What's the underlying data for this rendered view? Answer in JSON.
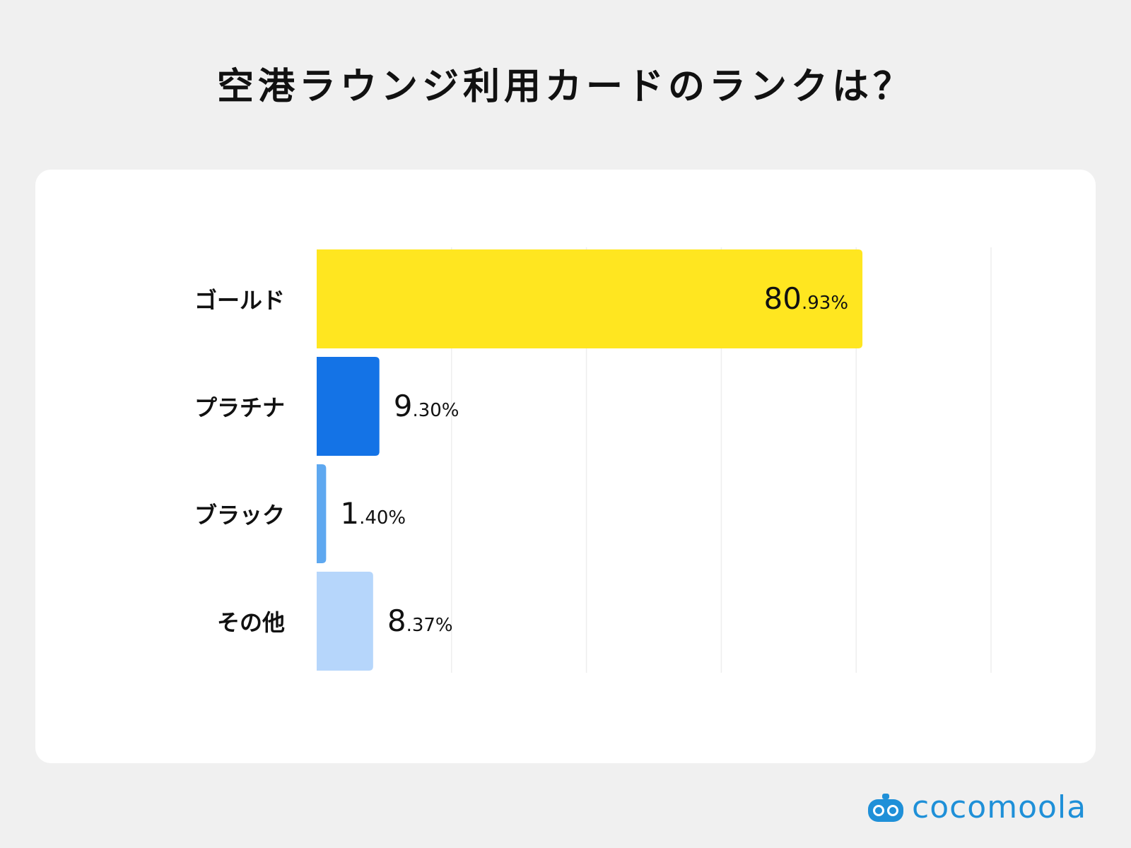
{
  "chart_data": {
    "type": "bar",
    "orientation": "horizontal",
    "title": "空港ラウンジ利用カードのランクは？",
    "categories": [
      "ゴールド",
      "プラチナ",
      "ブラック",
      "その他"
    ],
    "values": [
      80.93,
      9.3,
      1.4,
      8.37
    ],
    "value_labels": [
      {
        "int": "80",
        "dec": ".93%"
      },
      {
        "int": "9",
        "dec": ".30%"
      },
      {
        "int": "1",
        "dec": ".40%"
      },
      {
        "int": "8",
        "dec": ".37%"
      }
    ],
    "colors": [
      "#ffe620",
      "#1473e6",
      "#5ea8f0",
      "#b6d6fb"
    ],
    "xlim": [
      0,
      100
    ],
    "grid": true,
    "xlabel": "",
    "ylabel": ""
  },
  "brand": {
    "name": "cocomoola",
    "color": "#1f90d8",
    "icon": "robot-face-icon"
  }
}
